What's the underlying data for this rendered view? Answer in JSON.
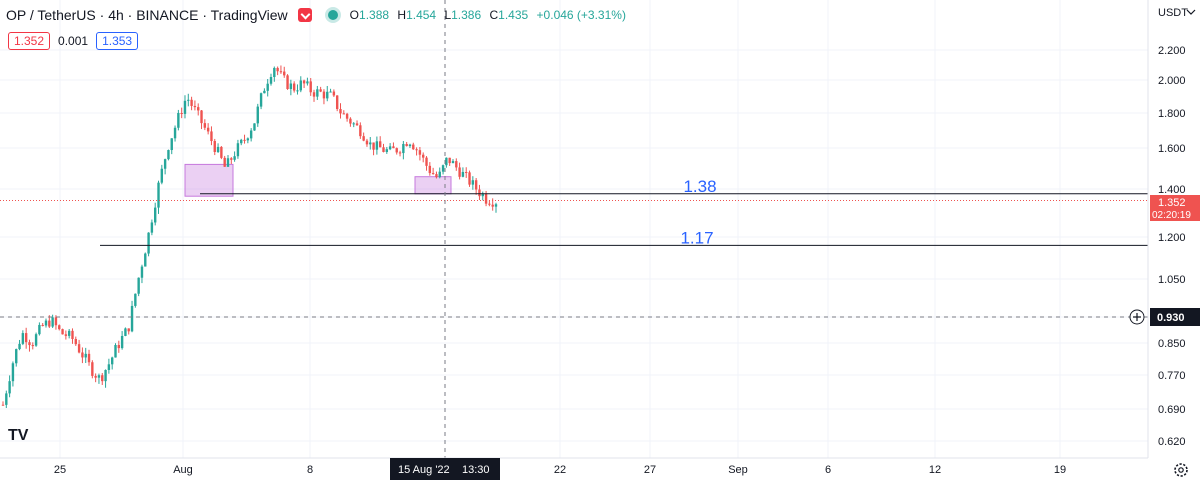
{
  "header": {
    "symbol_line": "OP / TetherUS · 4h · BINANCE · TradingView",
    "ohlc": {
      "o_label": "O",
      "o": "1.388",
      "h_label": "H",
      "h": "1.454",
      "l_label": "L",
      "l": "1.386",
      "c_label": "C",
      "c": "1.435",
      "change": "+0.046 (+3.31%)"
    }
  },
  "quote": {
    "sell": "1.352",
    "spread": "0.001",
    "buy": "1.353"
  },
  "logo_text": "TV",
  "colors": {
    "up": "#26a69a",
    "down": "#ef5350",
    "accent_blue": "#2962ff",
    "box": "#c678dd"
  },
  "chart_data": {
    "type": "candlestick",
    "currency_label": "USDT",
    "y_ticks": [
      "2.200",
      "2.000",
      "1.800",
      "1.600",
      "1.400",
      "1.200",
      "1.050",
      "0.930",
      "0.850",
      "0.770",
      "0.690",
      "0.620"
    ],
    "x_ticks": [
      "25",
      "Aug",
      "8",
      "22",
      "27",
      "Sep",
      "6",
      "12",
      "19"
    ],
    "crosshair": {
      "x_label": "15 Aug '22",
      "x_time": "13:30",
      "y_label": "0.930"
    },
    "last_price": {
      "value": "1.352",
      "countdown": "02:20:19"
    },
    "horizontal_lines": [
      {
        "value": 1.38,
        "label": "1.38"
      },
      {
        "value": 1.17,
        "label": "1.17"
      }
    ],
    "zones": [
      {
        "from": "Aug 1",
        "to": "Aug 3",
        "low": 1.37,
        "high": 1.52
      },
      {
        "from": "Aug 13",
        "to": "Aug 15",
        "low": 1.38,
        "high": 1.46
      }
    ],
    "close_path": [
      0.7,
      0.8,
      0.88,
      0.85,
      0.9,
      0.92,
      0.88,
      0.87,
      0.83,
      0.79,
      0.76,
      0.8,
      0.85,
      0.9,
      1.05,
      1.2,
      1.4,
      1.6,
      1.75,
      1.9,
      1.8,
      1.7,
      1.6,
      1.5,
      1.58,
      1.65,
      1.75,
      1.95,
      2.1,
      2.0,
      1.95,
      1.98,
      1.93,
      1.92,
      1.9,
      1.8,
      1.75,
      1.7,
      1.62,
      1.6,
      1.58,
      1.6,
      1.65,
      1.58,
      1.5,
      1.45,
      1.55,
      1.5,
      1.45,
      1.4,
      1.36,
      1.35
    ]
  }
}
